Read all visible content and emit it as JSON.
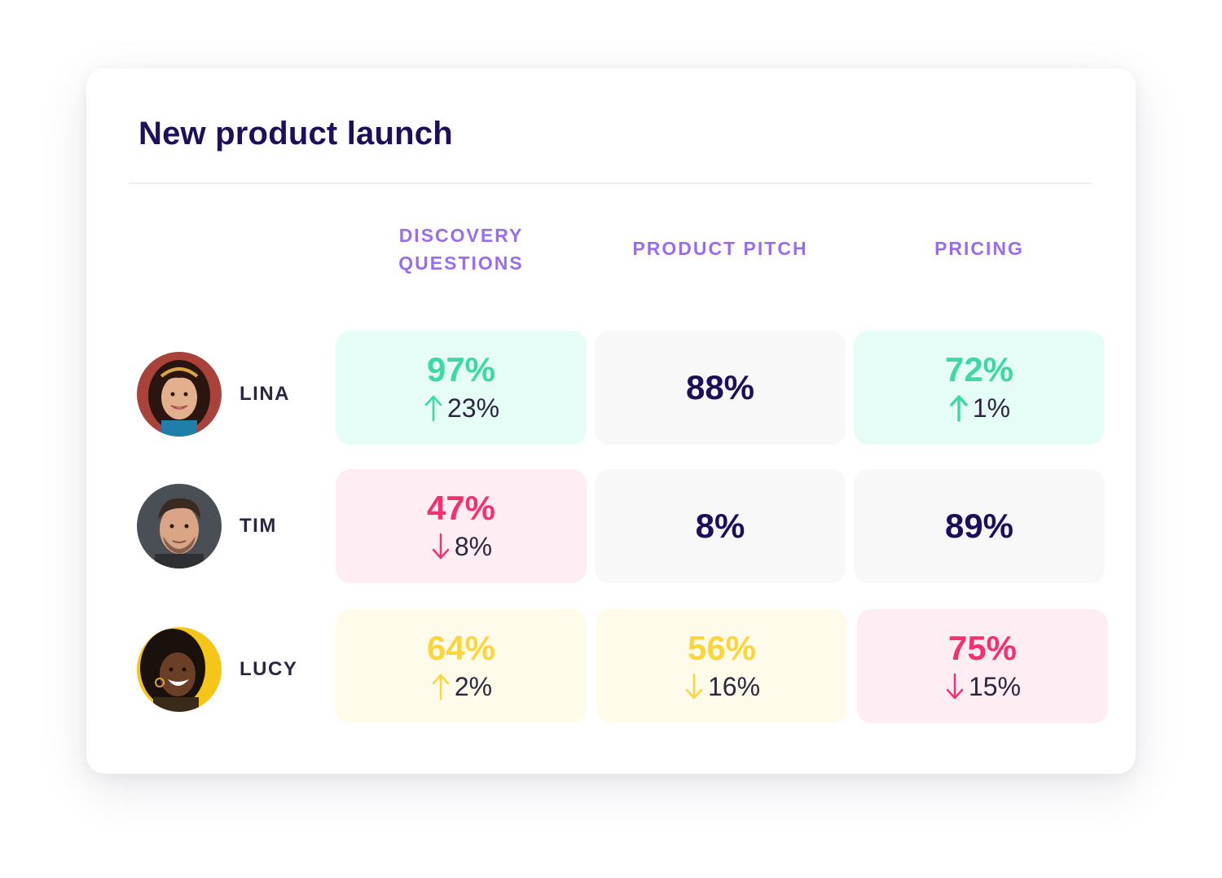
{
  "card": {
    "title": "New product launch"
  },
  "columns": [
    {
      "label_line1": "DISCOVERY",
      "label_line2": "QUESTIONS"
    },
    {
      "label": "PRODUCT PITCH"
    },
    {
      "label": "PRICING"
    }
  ],
  "reps": [
    {
      "name": "LINA",
      "avatar_icon": "avatar-photo-lina"
    },
    {
      "name": "TIM",
      "avatar_icon": "avatar-photo-tim"
    },
    {
      "name": "LUCY",
      "avatar_icon": "avatar-photo-lucy"
    }
  ],
  "scores": [
    [
      {
        "value": "97%",
        "delta": "23%",
        "trend": "up",
        "tone": "green"
      },
      {
        "value": "88%",
        "tone": "neutral"
      },
      {
        "value": "72%",
        "delta": "1%",
        "trend": "up",
        "tone": "green"
      }
    ],
    [
      {
        "value": "47%",
        "delta": "8%",
        "trend": "down",
        "tone": "pink"
      },
      {
        "value": "8%",
        "tone": "neutral"
      },
      {
        "value": "89%",
        "tone": "neutral"
      }
    ],
    [
      {
        "value": "64%",
        "delta": "2%",
        "trend": "up",
        "tone": "yellow"
      },
      {
        "value": "56%",
        "delta": "16%",
        "trend": "down",
        "tone": "yellow"
      },
      {
        "value": "75%",
        "delta": "15%",
        "trend": "down",
        "tone": "pink"
      }
    ]
  ],
  "colors": {
    "title": "#1e0e5c",
    "header": "#9b6cf0",
    "green": "#3cd9a4",
    "pink": "#f5306e",
    "yellow": "#fcd53d",
    "neutral_value": "#1e0e5c"
  }
}
